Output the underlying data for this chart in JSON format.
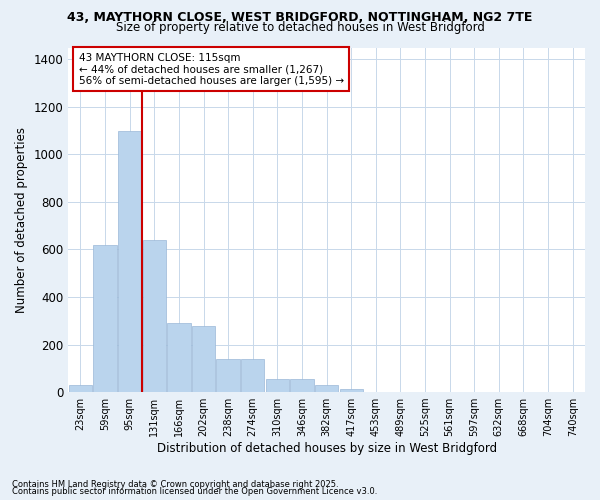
{
  "title1": "43, MAYTHORN CLOSE, WEST BRIDGFORD, NOTTINGHAM, NG2 7TE",
  "title2": "Size of property relative to detached houses in West Bridgford",
  "xlabel": "Distribution of detached houses by size in West Bridgford",
  "ylabel": "Number of detached properties",
  "categories": [
    "23sqm",
    "59sqm",
    "95sqm",
    "131sqm",
    "166sqm",
    "202sqm",
    "238sqm",
    "274sqm",
    "310sqm",
    "346sqm",
    "382sqm",
    "417sqm",
    "453sqm",
    "489sqm",
    "525sqm",
    "561sqm",
    "597sqm",
    "632sqm",
    "668sqm",
    "704sqm",
    "740sqm"
  ],
  "bar_heights": [
    30,
    620,
    1100,
    640,
    290,
    280,
    140,
    140,
    55,
    55,
    30,
    15,
    0,
    0,
    0,
    0,
    0,
    0,
    0,
    0,
    0
  ],
  "bar_color": "#bad4ed",
  "bar_edge_color": "#9ab8d8",
  "grid_color": "#c8d8ea",
  "bg_color": "#e8f0f8",
  "plot_bg_color": "#ffffff",
  "vline_color": "#cc0000",
  "vline_x_index": 2.5,
  "annotation_title": "43 MAYTHORN CLOSE: 115sqm",
  "annotation_line1": "← 44% of detached houses are smaller (1,267)",
  "annotation_line2": "56% of semi-detached houses are larger (1,595) →",
  "annotation_box_color": "#cc0000",
  "ylim": [
    0,
    1450
  ],
  "yticks": [
    0,
    200,
    400,
    600,
    800,
    1000,
    1200,
    1400
  ],
  "footnote1": "Contains HM Land Registry data © Crown copyright and database right 2025.",
  "footnote2": "Contains public sector information licensed under the Open Government Licence v3.0."
}
